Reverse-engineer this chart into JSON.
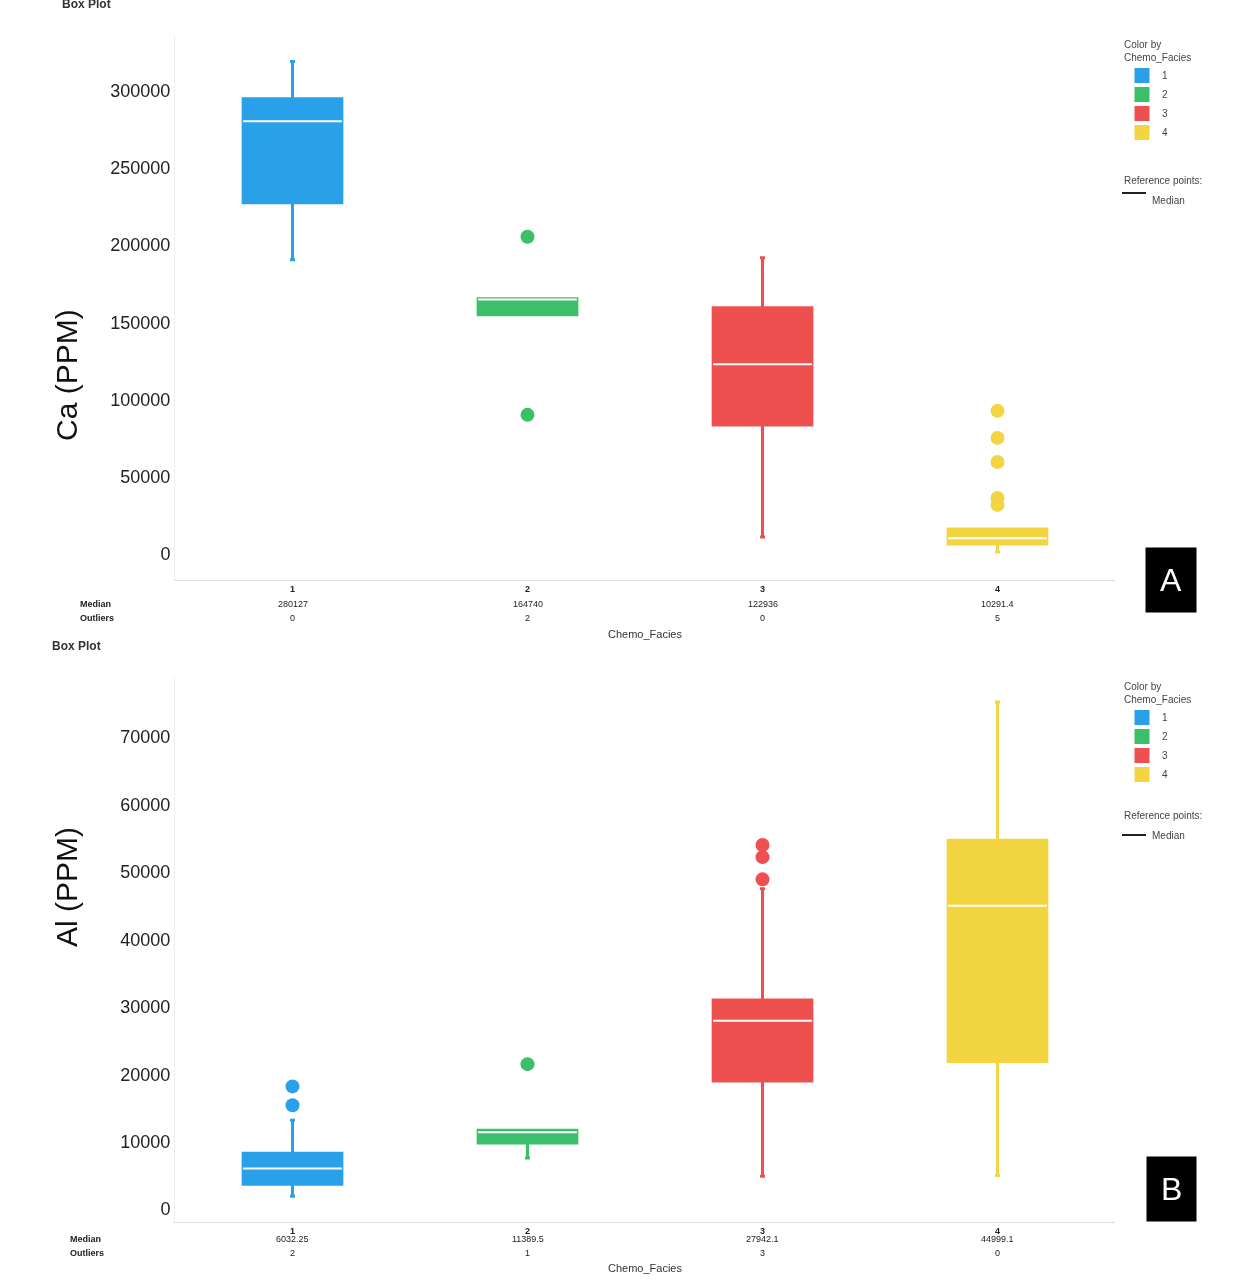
{
  "chart_data": [
    {
      "type": "box",
      "title": "Box Plot",
      "xlabel": "Chemo_Facies",
      "ylabel": "Ca (PPM)",
      "data_labels": true,
      "legend_title": "Color by Chemo_Facies",
      "legend": "top right",
      "categories": [
        "1",
        "2",
        "3",
        "4"
      ],
      "series": [
        {
          "name": "1",
          "color": "#2aa0e8",
          "boxes": [
            {
              "low": 190500,
              "q1": 227400,
              "median": 280127,
              "q3": 294800,
              "high": 318800
            },
            null,
            null,
            null
          ]
        },
        {
          "name": "2",
          "color": "#3cbf6a",
          "boxes": [
            null,
            {
              "low": 154900,
              "q1": 154900,
              "median": 164740,
              "q3": 165200,
              "high": 165200,
              "outliers": [
                205400,
                90100
              ]
            },
            null,
            null
          ]
        },
        {
          "name": "3",
          "color": "#ee5050",
          "boxes": [
            null,
            null,
            {
              "low": 11000,
              "q1": 83600,
              "median": 122936,
              "q3": 159400,
              "high": 191800
            },
            null
          ]
        },
        {
          "name": "4",
          "color": "#f2d541",
          "boxes": [
            null,
            null,
            null,
            {
              "low": 1300,
              "q1": 6500,
              "median": 10291.4,
              "q3": 16200,
              "high": 16200,
              "outliers": [
                92700,
                75200,
                59600,
                36300,
                31800
              ]
            }
          ]
        }
      ],
      "ylim": [
        -16800,
        336000
      ],
      "yticks": [
        0,
        50000,
        100000,
        150000,
        200000,
        250000,
        300000
      ],
      "annotations": [
        "Median",
        "Outliers",
        "280127",
        "164740",
        "122936",
        "10291.4",
        "0",
        "2",
        "0",
        "5",
        "Reference points:",
        "Median",
        "A"
      ]
    },
    {
      "type": "box",
      "title": "Box Plot",
      "xlabel": "Chemo_Facies",
      "ylabel": "Al (PPM)",
      "data_labels": true,
      "legend_title": "Color by Chemo_Facies",
      "legend": "top right",
      "categories": [
        "1",
        "2",
        "3",
        "4"
      ],
      "series": [
        {
          "name": "1",
          "color": "#2aa0e8",
          "boxes": [
            {
              "low": 1900,
              "q1": 3700,
              "median": 6032.25,
              "q3": 8300,
              "high": 13200,
              "outliers": [
                18200,
                15400
              ]
            },
            null,
            null,
            null
          ]
        },
        {
          "name": "2",
          "color": "#3cbf6a",
          "boxes": [
            null,
            {
              "low": 7600,
              "q1": 9800,
              "median": 11389.5,
              "q3": 11700,
              "high": 11700,
              "outliers": [
                21500
              ]
            },
            null,
            null
          ]
        },
        {
          "name": "3",
          "color": "#ee5050",
          "boxes": [
            null,
            null,
            {
              "low": 4900,
              "q1": 19000,
              "median": 27942.1,
              "q3": 31000,
              "high": 47500,
              "outliers": [
                54000,
                52200,
                48900
              ]
            },
            null
          ]
        },
        {
          "name": "4",
          "color": "#f2d541",
          "boxes": [
            null,
            null,
            null,
            {
              "low": 5000,
              "q1": 21900,
              "median": 44999.1,
              "q3": 54700,
              "high": 75200
            }
          ]
        }
      ],
      "ylim": [
        -1900,
        78900
      ],
      "yticks": [
        0,
        10000,
        20000,
        30000,
        40000,
        50000,
        60000,
        70000
      ],
      "annotations": [
        "Median",
        "Outliers",
        "6032.25",
        "11389.5",
        "27942.1",
        "44999.1",
        "2",
        "1",
        "3",
        "0",
        "Reference points:",
        "Median",
        "B"
      ]
    }
  ]
}
